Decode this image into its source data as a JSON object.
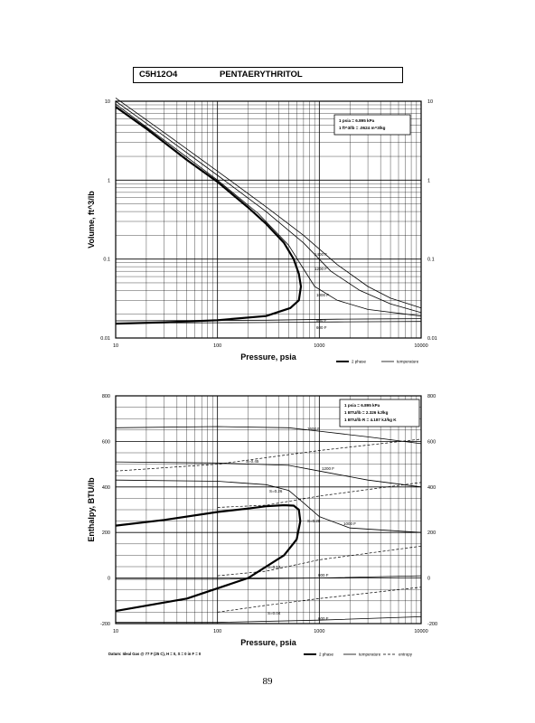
{
  "header": {
    "formula": "C5H12O4",
    "name": "PENTAERYTHRITOL"
  },
  "page_number": "89",
  "chart_data": [
    {
      "type": "line",
      "title": "",
      "xlabel": "Pressure, psia",
      "ylabel": "Volume, ft^3/lb",
      "xscale": "log",
      "yscale": "log",
      "xlim": [
        10,
        10000
      ],
      "ylim": [
        0.01,
        10
      ],
      "xticks": [
        "10",
        "100",
        "1000",
        "10000"
      ],
      "yticks": [
        "0.01",
        "0.1",
        "1",
        "10"
      ],
      "grid": true,
      "legend": [
        "2 phase",
        "temperature"
      ],
      "legend_position": "below-right",
      "conversion_box": [
        "1 psia = 6.895 kPa",
        "1 ft^3/lb = .0624 m^3/kg"
      ],
      "annotations": [
        "1400 F",
        "1200 F",
        "1000 F",
        "800 F",
        "600 F"
      ],
      "series": [
        {
          "name": "2 phase",
          "style": "bold",
          "x": [
            10,
            20,
            50,
            100,
            200,
            300,
            450,
            560,
            630,
            660,
            630,
            520,
            300,
            100,
            30,
            10
          ],
          "y": [
            8.5,
            4.5,
            1.8,
            0.95,
            0.45,
            0.28,
            0.16,
            0.1,
            0.065,
            0.045,
            0.03,
            0.024,
            0.019,
            0.0168,
            0.0158,
            0.0152
          ]
        },
        {
          "name": "1400 F",
          "x": [
            10,
            30,
            100,
            300,
            700,
            1500,
            3000,
            5000,
            10000
          ],
          "y": [
            11,
            4,
            1.3,
            0.46,
            0.2,
            0.085,
            0.045,
            0.032,
            0.024
          ]
        },
        {
          "name": "1200 F",
          "x": [
            10,
            30,
            100,
            300,
            700,
            1300,
            2500,
            5000,
            10000
          ],
          "y": [
            10,
            3.6,
            1.15,
            0.4,
            0.16,
            0.07,
            0.04,
            0.027,
            0.021
          ]
        },
        {
          "name": "1000 F",
          "x": [
            10,
            30,
            100,
            250,
            500,
            700,
            900,
            1500,
            3000,
            10000
          ],
          "y": [
            9.2,
            3.2,
            1.0,
            0.38,
            0.15,
            0.075,
            0.045,
            0.03,
            0.023,
            0.019
          ]
        },
        {
          "name": "800 F",
          "x": [
            10,
            100,
            300,
            700,
            1500,
            5000,
            10000
          ],
          "y": [
            0.0165,
            0.0167,
            0.0168,
            0.0171,
            0.0173,
            0.0175,
            0.0176
          ]
        },
        {
          "name": "600 F",
          "x": [
            10,
            100,
            300,
            700,
            1500,
            5000,
            10000
          ],
          "y": [
            0.0155,
            0.0156,
            0.0157,
            0.0159,
            0.016,
            0.0161,
            0.0162
          ]
        }
      ]
    },
    {
      "type": "line",
      "title": "",
      "xlabel": "Pressure, psia",
      "ylabel": "Enthalpy, BTU/lb",
      "xscale": "log",
      "yscale": "linear",
      "xlim": [
        10,
        10000
      ],
      "ylim": [
        -200,
        800
      ],
      "xticks": [
        "10",
        "100",
        "1000",
        "10000"
      ],
      "yticks": [
        "-200",
        "0",
        "200",
        "400",
        "600",
        "800"
      ],
      "grid": true,
      "legend": [
        "2 phase",
        "temperature",
        "entropy"
      ],
      "legend_position": "below-right",
      "conversion_box": [
        "1 psia = 6.895 kPa",
        "1 BTU/lb = 2.326 kJ/kg",
        "1 BTU/lb R = 4.187 kJ/kg K"
      ],
      "footnote": "Datum: Ideal Gas @ 77 F (25 C), H = 0, S = 0 in F = 0",
      "annotations": [
        "1600 F",
        "S=0.45",
        "1200 F",
        "S=0.28",
        "S=0.26",
        "1000 F",
        "S=0.12",
        "800 F",
        "S=0.04",
        "600 F"
      ],
      "series": [
        {
          "name": "2 phase",
          "style": "bold",
          "x": [
            10,
            30,
            100,
            200,
            300,
            450,
            560,
            630,
            650,
            600,
            450,
            200,
            50,
            10
          ],
          "y": [
            230,
            255,
            290,
            305,
            315,
            320,
            318,
            300,
            250,
            170,
            100,
            0,
            -90,
            -145
          ]
        },
        {
          "name": "1600 F",
          "x": [
            10,
            100,
            500,
            1000,
            3000,
            10000
          ],
          "y": [
            660,
            665,
            660,
            645,
            620,
            590
          ]
        },
        {
          "name": "1200 F",
          "x": [
            10,
            100,
            500,
            1000,
            3000,
            10000
          ],
          "y": [
            510,
            505,
            495,
            470,
            430,
            400
          ]
        },
        {
          "name": "1000 F",
          "x": [
            10,
            100,
            300,
            500,
            700,
            1000,
            2000,
            10000
          ],
          "y": [
            430,
            425,
            410,
            385,
            330,
            270,
            220,
            200
          ]
        },
        {
          "name": "800 F",
          "x": [
            10,
            100,
            1000,
            10000
          ],
          "y": [
            -5,
            -5,
            0,
            10
          ]
        },
        {
          "name": "600 F",
          "x": [
            10,
            100,
            1000,
            10000
          ],
          "y": [
            -195,
            -195,
            -185,
            -170
          ]
        },
        {
          "name": "S=0.45",
          "style": "dashed",
          "x": [
            10,
            100,
            1000,
            10000
          ],
          "y": [
            470,
            500,
            560,
            610
          ]
        },
        {
          "name": "S=0.28",
          "style": "dashed",
          "x": [
            100,
            300,
            1000,
            10000
          ],
          "y": [
            310,
            320,
            360,
            420
          ]
        },
        {
          "name": "S=0.12",
          "style": "dashed",
          "x": [
            100,
            300,
            1000,
            10000
          ],
          "y": [
            10,
            30,
            80,
            140
          ]
        },
        {
          "name": "S=0.04",
          "style": "dashed",
          "x": [
            100,
            300,
            1000,
            10000
          ],
          "y": [
            -150,
            -120,
            -90,
            -40
          ]
        }
      ]
    }
  ]
}
